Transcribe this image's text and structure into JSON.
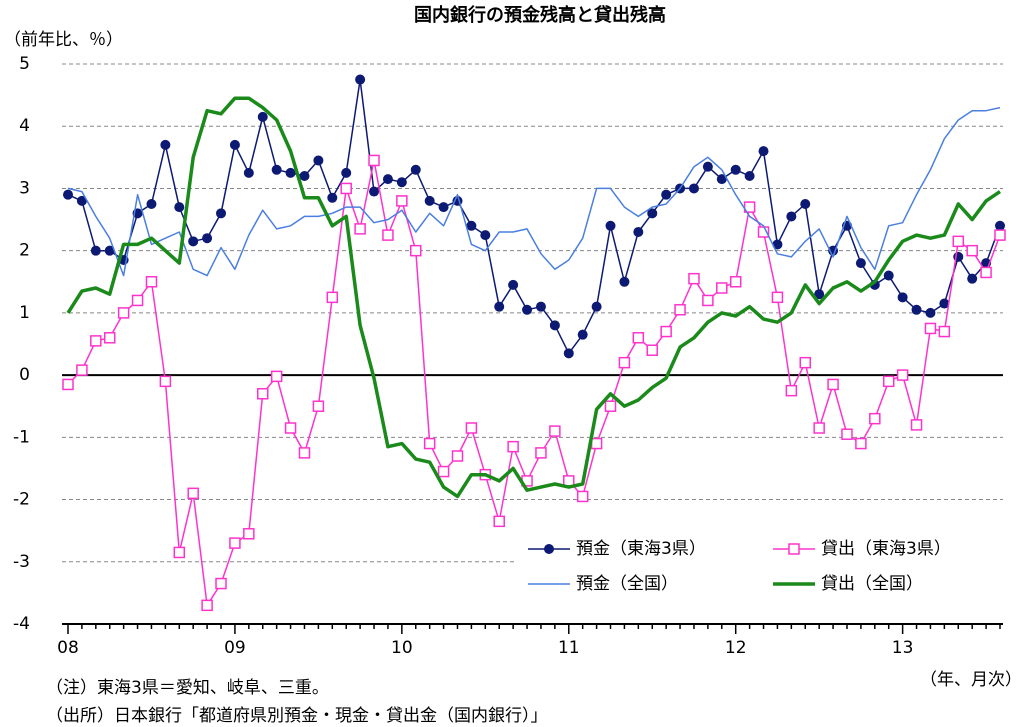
{
  "chart_data": {
    "type": "line",
    "title": "国内銀行の預金残高と貸出残高",
    "y_label": "（前年比、％）",
    "x_label": "（年、月次）",
    "notes": [
      "（注）東海3県＝愛知、岐阜、三重。",
      "（出所）日本銀行「都道府県別預金・現金・貸出金（国内銀行）」"
    ],
    "categories": [
      "08",
      null,
      null,
      null,
      null,
      null,
      null,
      null,
      null,
      null,
      null,
      null,
      "09",
      null,
      null,
      null,
      null,
      null,
      null,
      null,
      null,
      null,
      null,
      null,
      "10",
      null,
      null,
      null,
      null,
      null,
      null,
      null,
      null,
      null,
      null,
      null,
      "11",
      null,
      null,
      null,
      null,
      null,
      null,
      null,
      null,
      null,
      null,
      null,
      "12",
      null,
      null,
      null,
      null,
      null,
      null,
      null,
      null,
      null,
      null,
      null,
      "13",
      null,
      null,
      null,
      null,
      null,
      null,
      null
    ],
    "ylim": [
      -4,
      5
    ],
    "yticks": [
      5,
      4,
      3,
      2,
      1,
      0,
      -1,
      -2,
      -3,
      -4
    ],
    "grid": true,
    "legend": "lower right",
    "series": [
      {
        "name": "預金（東海3県）",
        "color": "#0d1a73",
        "marker": "circle",
        "values": [
          2.9,
          2.8,
          2.0,
          2.0,
          1.85,
          2.6,
          2.75,
          3.7,
          2.7,
          2.15,
          2.2,
          2.6,
          3.7,
          3.25,
          4.15,
          3.3,
          3.25,
          3.2,
          3.45,
          2.85,
          3.25,
          4.75,
          2.95,
          3.15,
          3.1,
          3.3,
          2.8,
          2.7,
          2.8,
          2.4,
          2.25,
          1.1,
          1.45,
          1.05,
          1.1,
          0.8,
          0.35,
          0.65,
          1.1,
          2.4,
          1.5,
          2.3,
          2.6,
          2.9,
          3.0,
          3.0,
          3.35,
          3.15,
          3.3,
          3.2,
          3.6,
          2.1,
          2.55,
          2.75,
          1.3,
          2.0,
          2.4,
          1.8,
          1.45,
          1.6,
          1.25,
          1.05,
          1.0,
          1.15,
          1.9,
          1.55,
          1.8,
          2.4
        ]
      },
      {
        "name": "貸出（東海3県）",
        "color": "#ff33cc",
        "marker": "square",
        "values": [
          -0.15,
          0.08,
          0.55,
          0.6,
          1.0,
          1.2,
          1.5,
          -0.1,
          -2.85,
          -1.9,
          -3.7,
          -3.35,
          -2.7,
          -2.55,
          -0.3,
          -0.02,
          -0.85,
          -1.25,
          -0.5,
          1.25,
          3.0,
          2.35,
          3.45,
          2.25,
          2.8,
          2.0,
          -1.1,
          -1.55,
          -1.3,
          -0.85,
          -1.6,
          -2.35,
          -1.15,
          -1.7,
          -1.25,
          -0.9,
          -1.7,
          -1.95,
          -1.1,
          -0.5,
          0.2,
          0.6,
          0.4,
          0.7,
          1.05,
          1.55,
          1.2,
          1.4,
          1.5,
          2.7,
          2.3,
          1.25,
          -0.25,
          0.2,
          -0.85,
          -0.15,
          -0.95,
          -1.1,
          -0.7,
          -0.1,
          0.0,
          -0.8,
          0.75,
          0.7,
          2.15,
          2.0,
          1.65,
          2.25
        ]
      },
      {
        "name": "預金（全国）",
        "color": "#4a7fe0",
        "marker": "none",
        "width": 1.5,
        "values": [
          3.0,
          2.95,
          2.55,
          2.2,
          1.6,
          2.9,
          2.1,
          2.2,
          2.3,
          1.7,
          1.6,
          2.05,
          1.7,
          2.25,
          2.65,
          2.35,
          2.4,
          2.55,
          2.55,
          2.6,
          2.7,
          2.7,
          2.45,
          2.5,
          2.65,
          2.3,
          2.6,
          2.4,
          2.9,
          2.1,
          2.0,
          2.3,
          2.3,
          2.35,
          1.95,
          1.7,
          1.85,
          2.2,
          3.0,
          3.0,
          2.7,
          2.55,
          2.7,
          2.75,
          3.0,
          3.35,
          3.5,
          3.3,
          2.9,
          2.55,
          2.4,
          1.95,
          1.9,
          2.15,
          2.35,
          1.9,
          2.55,
          2.05,
          1.7,
          2.4,
          2.45,
          2.9,
          3.3,
          3.8,
          4.1,
          4.25,
          4.25,
          4.3
        ]
      },
      {
        "name": "貸出（全国）",
        "color": "#1a8a1a",
        "marker": "none",
        "width": 3.5,
        "values": [
          1.0,
          1.35,
          1.4,
          1.3,
          2.1,
          2.1,
          2.2,
          2.0,
          1.8,
          3.5,
          4.25,
          4.2,
          4.45,
          4.45,
          4.3,
          4.1,
          3.6,
          2.85,
          2.85,
          2.4,
          2.55,
          0.8,
          -0.05,
          -1.15,
          -1.1,
          -1.35,
          -1.4,
          -1.8,
          -1.95,
          -1.6,
          -1.6,
          -1.7,
          -1.5,
          -1.85,
          -1.8,
          -1.75,
          -1.8,
          -1.75,
          -0.55,
          -0.3,
          -0.5,
          -0.4,
          -0.2,
          -0.05,
          0.45,
          0.6,
          0.85,
          1.0,
          0.95,
          1.1,
          0.9,
          0.85,
          1.0,
          1.45,
          1.15,
          1.4,
          1.5,
          1.35,
          1.5,
          1.85,
          2.15,
          2.25,
          2.2,
          2.25,
          2.75,
          2.5,
          2.8,
          2.95
        ]
      }
    ]
  }
}
